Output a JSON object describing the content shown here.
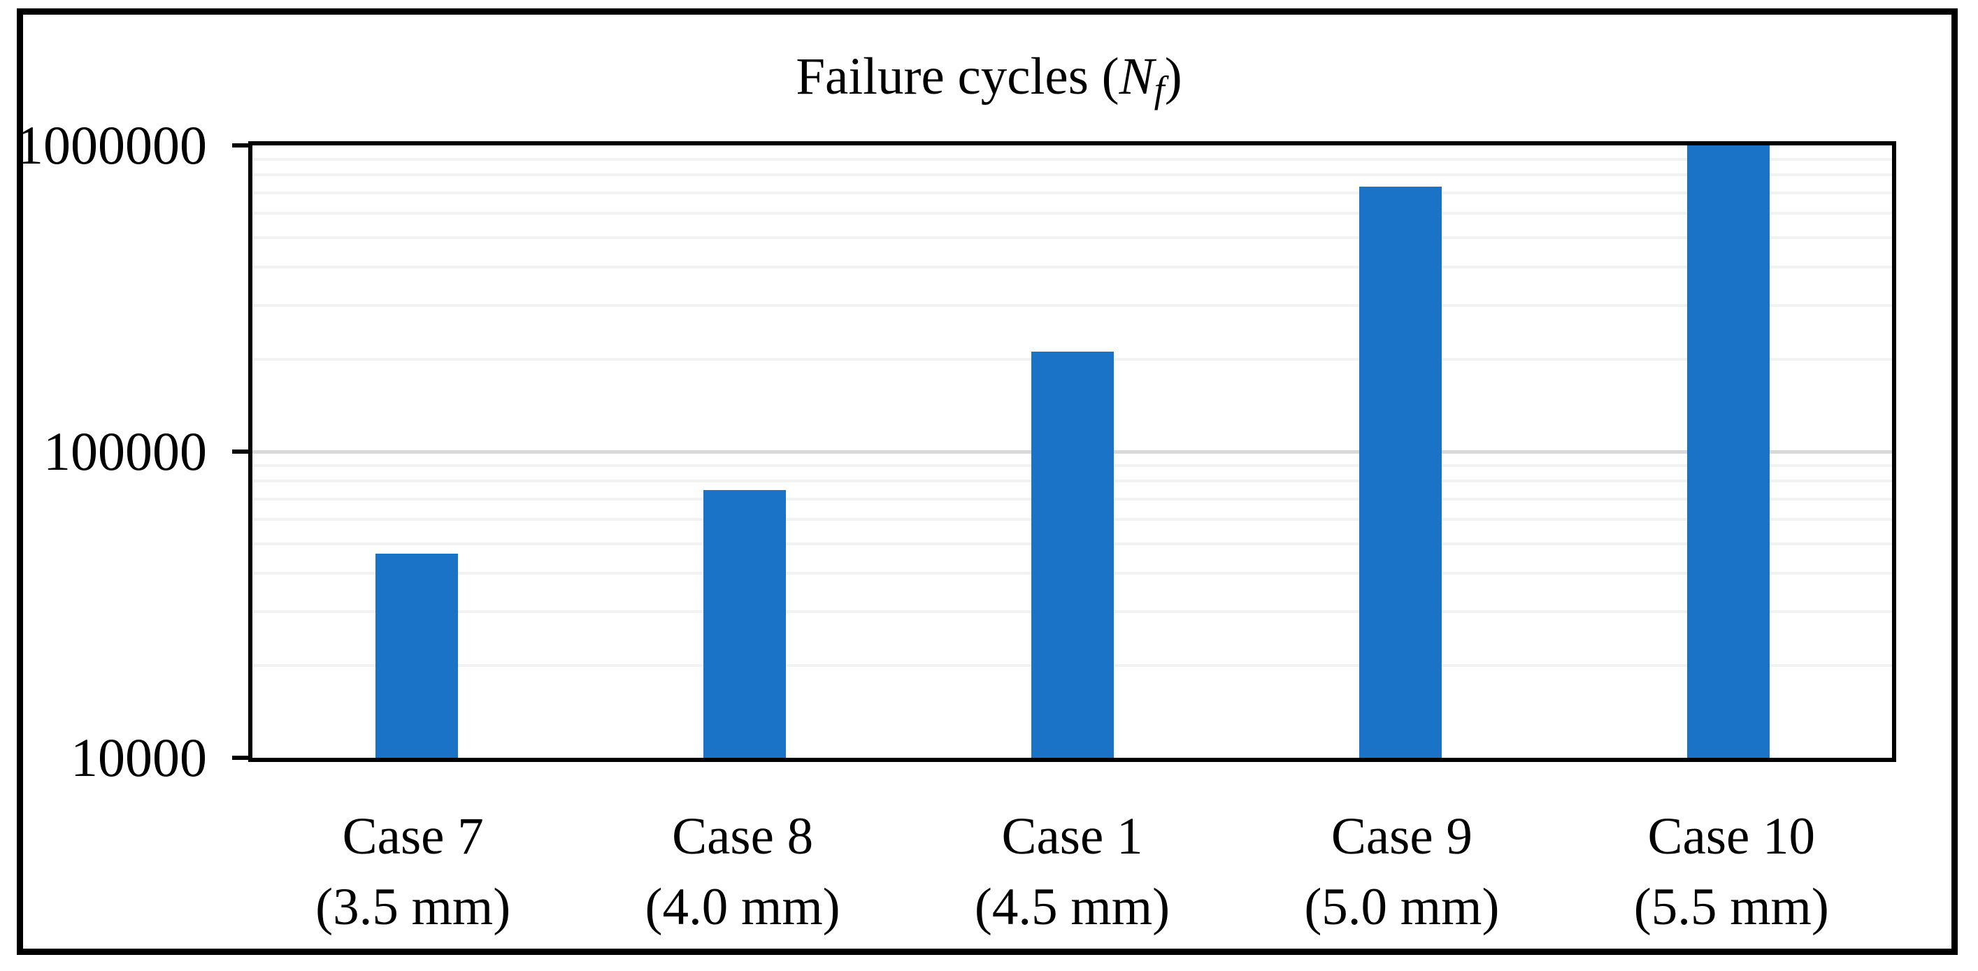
{
  "title": {
    "prefix": "Failure cycles (",
    "variable": "N",
    "subscript": "f",
    "suffix": ")"
  },
  "chart_data": {
    "type": "bar",
    "title": "Failure cycles (N_f)",
    "categories": [
      "Case 7",
      "Case 8",
      "Case 1",
      "Case 9",
      "Case 10"
    ],
    "category_sublabels": [
      "(3.5 mm)",
      "(4.0 mm)",
      "(4.5 mm)",
      "(5.0 mm)",
      "(5.5 mm)"
    ],
    "values": [
      46500,
      75000,
      212000,
      733000,
      1000000
    ],
    "xlabel": "",
    "ylabel": "",
    "y_axis": {
      "scale": "log",
      "min": 10000,
      "max": 1000000,
      "tick_values": [
        1000000,
        100000,
        10000
      ],
      "tick_labels": [
        "1000000",
        "100000",
        "10000"
      ]
    },
    "grid": {
      "state": "on",
      "minor_per_decade": [
        2,
        3,
        4,
        5,
        6,
        7,
        8,
        9
      ],
      "minor_color": "#f2f2f2",
      "major_color": "#d9d9d9"
    },
    "legend_position": "none",
    "bar_color": "#1b73c8",
    "axis_color": "#000000",
    "background_color": "#ffffff"
  }
}
